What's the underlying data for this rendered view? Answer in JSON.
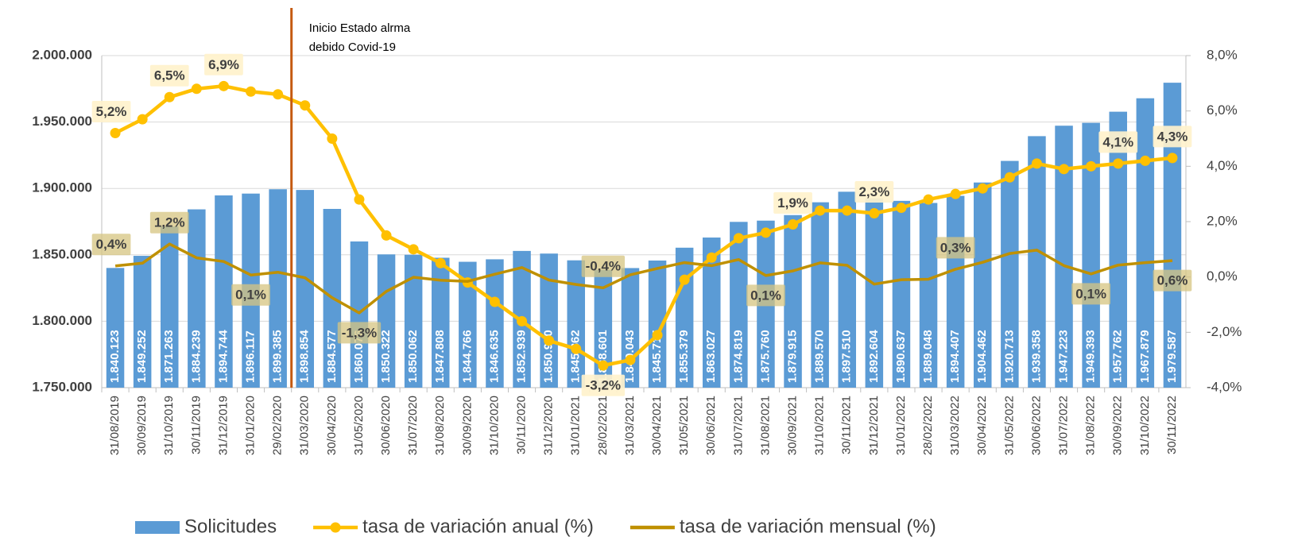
{
  "chart_data": {
    "type": "bar-line",
    "annotation": [
      "Inicio Estado alrma",
      "debido Covid-19"
    ],
    "categories": [
      "31/08/2019",
      "30/09/2019",
      "31/10/2019",
      "30/11/2019",
      "31/12/2019",
      "31/01/2020",
      "29/02/2020",
      "31/03/2020",
      "30/04/2020",
      "31/05/2020",
      "30/06/2020",
      "31/07/2020",
      "31/08/2020",
      "30/09/2020",
      "31/10/2020",
      "30/11/2020",
      "31/12/2020",
      "31/01/2021",
      "28/02/2021",
      "31/03/2021",
      "30/04/2021",
      "31/05/2021",
      "30/06/2021",
      "31/07/2021",
      "31/08/2021",
      "30/09/2021",
      "31/10/2021",
      "30/11/2021",
      "31/12/2021",
      "31/01/2022",
      "28/02/2022",
      "31/03/2022",
      "30/04/2022",
      "31/05/2022",
      "30/06/2022",
      "31/07/2022",
      "31/08/2022",
      "30/09/2022",
      "31/10/2022",
      "30/11/2022"
    ],
    "series": [
      {
        "name": "Solicitudes",
        "type": "bar",
        "color": "#5b9bd5",
        "values": [
          1840123,
          1849252,
          1871263,
          1884239,
          1894744,
          1896117,
          1899385,
          1898854,
          1884577,
          1860076,
          1850322,
          1850062,
          1847808,
          1844766,
          1846635,
          1852939,
          1850950,
          1845862,
          1838601,
          1840043,
          1845715,
          1855379,
          1863027,
          1874819,
          1875760,
          1879915,
          1889570,
          1897510,
          1892604,
          1890637,
          1889048,
          1894407,
          1904462,
          1920713,
          1939358,
          1947223,
          1949393,
          1957762,
          1967879,
          1979587
        ],
        "value_labels": [
          "1.840.123",
          "1.849.252",
          "1.871.263",
          "1.884.239",
          "1.894.744",
          "1.896.117",
          "1.899.385",
          "1.898.854",
          "1.884.577",
          "1.860.076",
          "1.850.322",
          "1.850.062",
          "1.847.808",
          "1.844.766",
          "1.846.635",
          "1.852.939",
          "1.850.950",
          "1.845.862",
          "1.838.601",
          "1.840.043",
          "1.845.715",
          "1.855.379",
          "1.863.027",
          "1.874.819",
          "1.875.760",
          "1.879.915",
          "1.889.570",
          "1.897.510",
          "1.892.604",
          "1.890.637",
          "1.889.048",
          "1.894.407",
          "1.904.462",
          "1.920.713",
          "1.939.358",
          "1.947.223",
          "1.949.393",
          "1.957.762",
          "1.967.879",
          "1.979.587"
        ]
      },
      {
        "name": "tasa de variación anual (%)",
        "type": "line",
        "axis": "y2",
        "color": "#ffc000",
        "marker": true,
        "values": [
          5.2,
          5.7,
          6.5,
          6.8,
          6.9,
          6.7,
          6.6,
          6.2,
          5.0,
          2.8,
          1.5,
          1.0,
          0.5,
          -0.2,
          -0.9,
          -1.6,
          -2.3,
          -2.6,
          -3.2,
          -3.0,
          -2.1,
          -0.1,
          0.7,
          1.4,
          1.6,
          1.9,
          2.4,
          2.4,
          2.3,
          2.5,
          2.8,
          3.0,
          3.2,
          3.6,
          4.1,
          3.9,
          4.0,
          4.1,
          4.2,
          4.3
        ],
        "value_labels": [
          "5,2%",
          null,
          "6,5%",
          null,
          "6,9%",
          null,
          null,
          null,
          null,
          null,
          null,
          null,
          null,
          null,
          null,
          null,
          null,
          null,
          "-3,2%",
          null,
          null,
          null,
          null,
          null,
          null,
          "1,9%",
          null,
          null,
          "2,3%",
          null,
          null,
          null,
          null,
          null,
          null,
          null,
          null,
          "4,1%",
          null,
          "4,3%"
        ]
      },
      {
        "name": "tasa de variación mensual (%)",
        "type": "line",
        "axis": "y2",
        "color": "#bf9000",
        "marker": false,
        "values": [
          0.4,
          0.5,
          1.19,
          0.69,
          0.56,
          0.07,
          0.17,
          -0.03,
          -0.75,
          -1.3,
          -0.52,
          -0.01,
          -0.12,
          -0.16,
          0.1,
          0.34,
          -0.11,
          -0.27,
          -0.39,
          0.08,
          0.31,
          0.52,
          0.41,
          0.63,
          0.05,
          0.22,
          0.51,
          0.42,
          -0.26,
          -0.1,
          -0.08,
          0.28,
          0.53,
          0.85,
          0.97,
          0.41,
          0.11,
          0.43,
          0.52,
          0.59
        ],
        "value_labels": [
          "0,4%",
          null,
          "1,2%",
          null,
          null,
          "0,1%",
          null,
          null,
          null,
          "-1,3%",
          null,
          null,
          null,
          null,
          null,
          null,
          null,
          null,
          "-0,4%",
          null,
          null,
          null,
          null,
          null,
          "0,1%",
          null,
          null,
          null,
          null,
          null,
          null,
          "0,3%",
          null,
          null,
          null,
          null,
          "0,1%",
          null,
          null,
          "0,6%"
        ]
      }
    ],
    "ylim": [
      1750000,
      2000000
    ],
    "yticks": [
      {
        "value": 1750000,
        "label": "1.750.000"
      },
      {
        "value": 1800000,
        "label": "1.800.000"
      },
      {
        "value": 1850000,
        "label": "1.850.000"
      },
      {
        "value": 1900000,
        "label": "1.900.000"
      },
      {
        "value": 1950000,
        "label": "1.950.000"
      },
      {
        "value": 2000000,
        "label": "2.000.000"
      }
    ],
    "y2lim": [
      -4,
      8
    ],
    "y2ticks": [
      {
        "value": -4,
        "label": "-4,0%"
      },
      {
        "value": -2,
        "label": "-2,0%"
      },
      {
        "value": 0,
        "label": "0,0%"
      },
      {
        "value": 2,
        "label": "2,0%"
      },
      {
        "value": 4,
        "label": "4,0%"
      },
      {
        "value": 6,
        "label": "6,0%"
      },
      {
        "value": 8,
        "label": "8,0%"
      }
    ],
    "grid": true
  }
}
